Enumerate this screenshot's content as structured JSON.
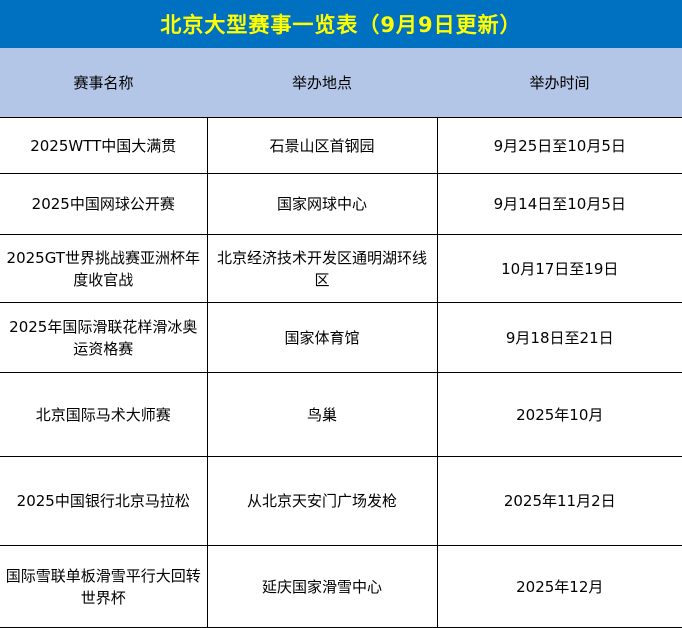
{
  "title": "北京大型赛事一览表（9月9日更新）",
  "columns": [
    "赛事名称",
    "举办地点",
    "举办时间"
  ],
  "colors": {
    "title_bg": "#0070c0",
    "title_text": "#ffff00",
    "header_bg": "#b4c6e7"
  },
  "rows": [
    [
      "2025WTT中国大满贯",
      "石景山区首钢园",
      "9月25日至10月5日"
    ],
    [
      "2025中国网球公开赛",
      "国家网球中心",
      "9月14日至10月5日"
    ],
    [
      "2025GT世界挑战赛亚洲杯年度收官战",
      "北京经济技术开发区通明湖环线区",
      "10月17日至19日"
    ],
    [
      "2025年国际滑联花样滑冰奥运资格赛",
      "国家体育馆",
      "9月18日至21日"
    ],
    [
      "北京国际马术大师赛",
      "鸟巢",
      "2025年10月"
    ],
    [
      "2025中国银行北京马拉松",
      "从北京天安门广场发枪",
      "2025年11月2日"
    ],
    [
      "国际雪联单板滑雪平行大回转世界杯",
      "延庆国家滑雪中心",
      "2025年12月"
    ]
  ]
}
